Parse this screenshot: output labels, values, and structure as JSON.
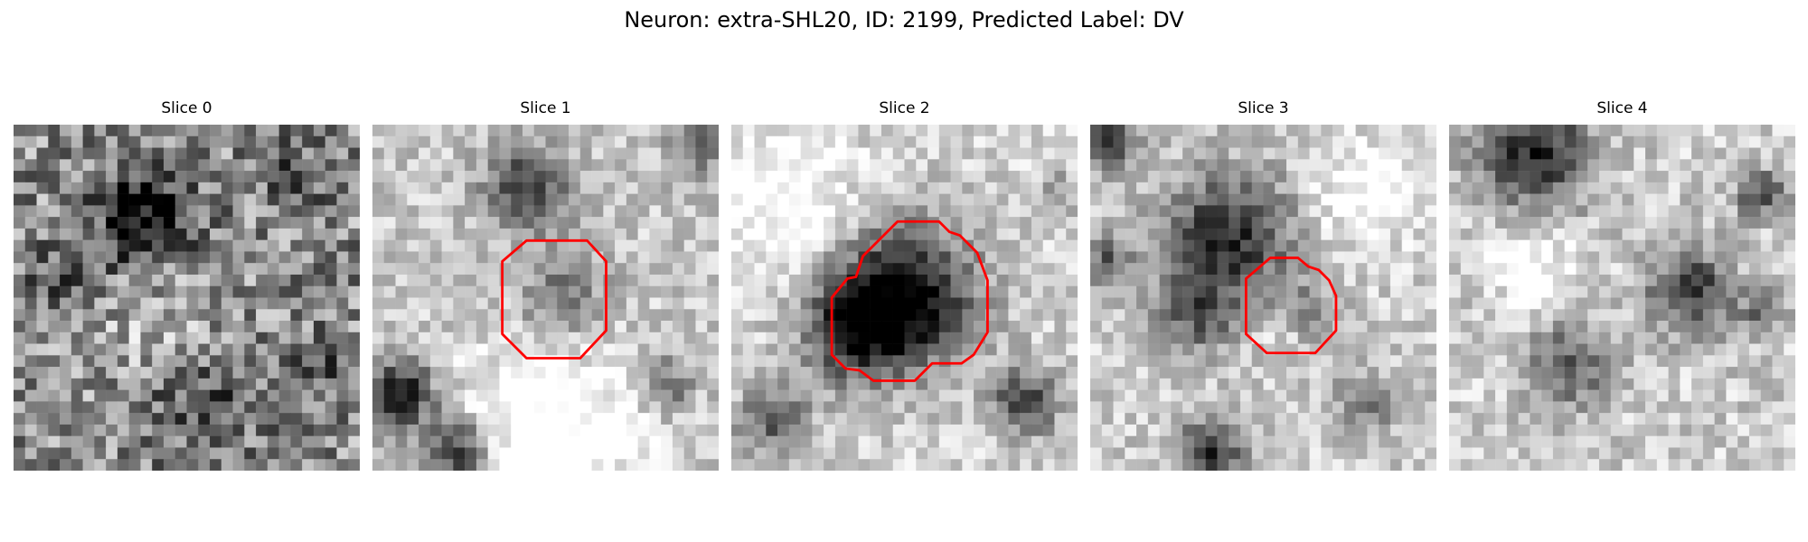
{
  "figure": {
    "title": "Neuron: extra-SHL20, ID: 2199, Predicted Label: DV"
  },
  "colors": {
    "outline": "#ff0000"
  },
  "panels": [
    {
      "title": "Slice 0",
      "seed": 11,
      "blobs": [
        [
          0.38,
          0.27,
          0.14,
          0.55
        ],
        [
          0.15,
          0.45,
          0.1,
          0.3
        ],
        [
          0.8,
          0.15,
          0.1,
          0.25
        ],
        [
          0.55,
          0.8,
          0.15,
          0.25
        ],
        [
          0.9,
          0.7,
          0.1,
          0.2
        ]
      ],
      "light": [
        [
          0.4,
          0.55,
          0.15,
          0.2
        ]
      ],
      "base": 0.55,
      "noise": 0.3,
      "outline": []
    },
    {
      "title": "Slice 1",
      "seed": 23,
      "blobs": [
        [
          0.45,
          0.18,
          0.12,
          0.55
        ],
        [
          0.55,
          0.5,
          0.12,
          0.35
        ],
        [
          0.08,
          0.78,
          0.1,
          0.7
        ],
        [
          0.25,
          0.95,
          0.1,
          0.65
        ],
        [
          0.85,
          0.75,
          0.07,
          0.4
        ],
        [
          0.95,
          0.05,
          0.1,
          0.3
        ]
      ],
      "light": [
        [
          0.5,
          0.9,
          0.25,
          0.4
        ]
      ],
      "base": 0.78,
      "noise": 0.16,
      "outline": [
        [
          0.375,
          0.395
        ],
        [
          0.445,
          0.335
        ],
        [
          0.62,
          0.335
        ],
        [
          0.675,
          0.395
        ],
        [
          0.675,
          0.595
        ],
        [
          0.6,
          0.675
        ],
        [
          0.445,
          0.675
        ],
        [
          0.375,
          0.605
        ]
      ]
    },
    {
      "title": "Slice 2",
      "seed": 37,
      "blobs": [
        [
          0.5,
          0.5,
          0.2,
          0.85
        ],
        [
          0.35,
          0.6,
          0.14,
          0.55
        ],
        [
          0.12,
          0.85,
          0.1,
          0.45
        ],
        [
          0.85,
          0.8,
          0.1,
          0.55
        ],
        [
          0.95,
          0.2,
          0.06,
          0.25
        ]
      ],
      "light": [
        [
          0.15,
          0.2,
          0.2,
          0.25
        ]
      ],
      "base": 0.82,
      "noise": 0.16,
      "outline": [
        [
          0.38,
          0.38
        ],
        [
          0.48,
          0.28
        ],
        [
          0.6,
          0.28
        ],
        [
          0.63,
          0.31
        ],
        [
          0.66,
          0.32
        ],
        [
          0.71,
          0.37
        ],
        [
          0.74,
          0.45
        ],
        [
          0.74,
          0.6
        ],
        [
          0.7,
          0.665
        ],
        [
          0.665,
          0.69
        ],
        [
          0.58,
          0.69
        ],
        [
          0.53,
          0.74
        ],
        [
          0.41,
          0.74
        ],
        [
          0.37,
          0.71
        ],
        [
          0.33,
          0.705
        ],
        [
          0.29,
          0.665
        ],
        [
          0.29,
          0.5
        ],
        [
          0.335,
          0.445
        ],
        [
          0.36,
          0.44
        ]
      ]
    },
    {
      "title": "Slice 3",
      "seed": 53,
      "blobs": [
        [
          0.4,
          0.32,
          0.18,
          0.65
        ],
        [
          0.3,
          0.55,
          0.12,
          0.4
        ],
        [
          0.6,
          0.55,
          0.1,
          0.35
        ],
        [
          0.05,
          0.05,
          0.08,
          0.55
        ],
        [
          0.05,
          0.4,
          0.07,
          0.45
        ],
        [
          0.35,
          0.95,
          0.1,
          0.6
        ],
        [
          0.8,
          0.8,
          0.08,
          0.4
        ]
      ],
      "light": [
        [
          0.55,
          0.58,
          0.08,
          0.3
        ],
        [
          0.8,
          0.2,
          0.15,
          0.25
        ]
      ],
      "base": 0.8,
      "noise": 0.16,
      "outline": [
        [
          0.45,
          0.445
        ],
        [
          0.52,
          0.385
        ],
        [
          0.6,
          0.385
        ],
        [
          0.63,
          0.41
        ],
        [
          0.66,
          0.42
        ],
        [
          0.69,
          0.45
        ],
        [
          0.71,
          0.495
        ],
        [
          0.71,
          0.595
        ],
        [
          0.65,
          0.66
        ],
        [
          0.51,
          0.66
        ],
        [
          0.45,
          0.605
        ]
      ]
    },
    {
      "title": "Slice 4",
      "seed": 71,
      "blobs": [
        [
          0.25,
          0.08,
          0.16,
          0.65
        ],
        [
          0.7,
          0.48,
          0.12,
          0.6
        ],
        [
          0.35,
          0.7,
          0.12,
          0.45
        ],
        [
          0.9,
          0.2,
          0.07,
          0.5
        ],
        [
          0.9,
          0.55,
          0.07,
          0.3
        ]
      ],
      "light": [
        [
          0.25,
          0.4,
          0.12,
          0.25
        ]
      ],
      "base": 0.8,
      "noise": 0.17,
      "outline": []
    }
  ]
}
